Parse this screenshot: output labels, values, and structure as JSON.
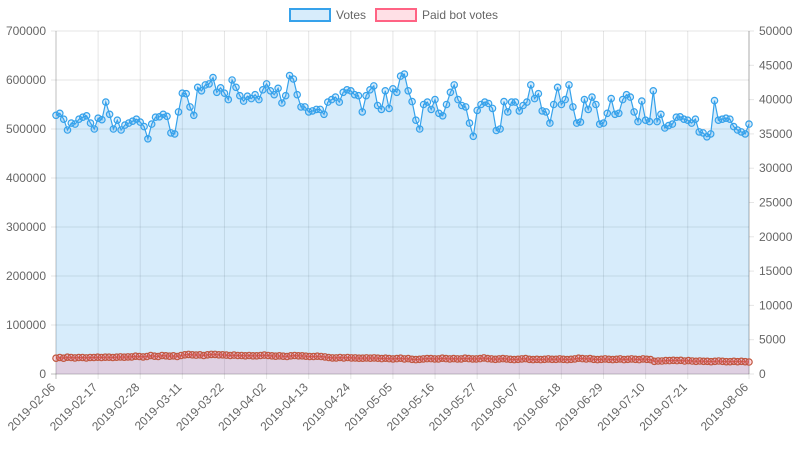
{
  "chart_data": {
    "type": "line",
    "title": "",
    "legend": {
      "position": "top",
      "items": [
        {
          "label": "Votes",
          "color": "#36a2eb",
          "fill": "rgba(54,162,235,0.2)"
        },
        {
          "label": "Paid bot votes",
          "color": "#ff6384",
          "fill": "rgba(255,99,132,0.2)"
        }
      ]
    },
    "x_tick_labels": [
      "2019-02-06",
      "2019-02-17",
      "2019-02-28",
      "2019-03-11",
      "2019-03-22",
      "2019-04-02",
      "2019-04-13",
      "2019-04-24",
      "2019-05-05",
      "2019-05-16",
      "2019-05-27",
      "2019-06-07",
      "2019-06-18",
      "2019-06-29",
      "2019-07-10",
      "2019-07-21",
      "2019-08-06"
    ],
    "y_left": {
      "min": 0,
      "max": 700000,
      "step": 100000,
      "ticks": [
        "0",
        "100000",
        "200000",
        "300000",
        "400000",
        "500000",
        "600000",
        "700000"
      ]
    },
    "y_right": {
      "min": 0,
      "max": 50000,
      "step": 5000,
      "ticks": [
        "0",
        "5000",
        "10000",
        "15000",
        "20000",
        "25000",
        "30000",
        "35000",
        "40000",
        "45000",
        "50000"
      ]
    },
    "grid": true,
    "x_start": "2019-02-06",
    "x_end": "2019-08-06",
    "series": [
      {
        "name": "Votes",
        "axis": "left",
        "values": [
          528000,
          532000,
          520000,
          498000,
          512000,
          510000,
          520000,
          524000,
          527000,
          512000,
          500000,
          522000,
          519000,
          555000,
          530000,
          500000,
          518000,
          498000,
          508000,
          512000,
          516000,
          520000,
          514000,
          505000,
          480000,
          510000,
          524000,
          525000,
          530000,
          526000,
          492000,
          490000,
          535000,
          573000,
          572000,
          545000,
          528000,
          585000,
          578000,
          590000,
          592000,
          605000,
          575000,
          584000,
          573000,
          560000,
          600000,
          585000,
          568000,
          557000,
          567000,
          562000,
          570000,
          560000,
          580000,
          592000,
          578000,
          570000,
          583000,
          553000,
          568000,
          609000,
          602000,
          570000,
          545000,
          545000,
          535000,
          537000,
          540000,
          540000,
          530000,
          555000,
          560000,
          565000,
          555000,
          575000,
          580000,
          578000,
          570000,
          568000,
          535000,
          568000,
          580000,
          588000,
          548000,
          540000,
          578000,
          542000,
          582000,
          575000,
          608000,
          612000,
          578000,
          556000,
          518000,
          500000,
          550000,
          555000,
          540000,
          560000,
          532000,
          527000,
          550000,
          575000,
          590000,
          560000,
          548000,
          545000,
          512000,
          485000,
          538000,
          550000,
          555000,
          552000,
          542000,
          497000,
          500000,
          556000,
          535000,
          555000,
          555000,
          537000,
          548000,
          555000,
          590000,
          562000,
          572000,
          537000,
          535000,
          512000,
          550000,
          585000,
          550000,
          560000,
          590000,
          545000,
          512000,
          514000,
          560000,
          540000,
          565000,
          550000,
          510000,
          512000,
          532000,
          562000,
          530000,
          532000,
          560000,
          570000,
          565000,
          535000,
          515000,
          557000,
          518000,
          515000,
          578000,
          515000,
          530000,
          502000,
          507000,
          510000,
          524000,
          525000,
          520000,
          518000,
          512000,
          520000,
          494000,
          492000,
          484000,
          490000,
          558000,
          518000,
          520000,
          522000,
          520000,
          505000,
          498000,
          494000,
          490000,
          510000
        ]
      },
      {
        "name": "Paid bot votes",
        "axis": "right",
        "values": [
          2300,
          2400,
          2300,
          2450,
          2400,
          2350,
          2400,
          2400,
          2350,
          2400,
          2400,
          2450,
          2400,
          2450,
          2450,
          2400,
          2450,
          2500,
          2450,
          2500,
          2500,
          2600,
          2550,
          2500,
          2550,
          2700,
          2600,
          2550,
          2700,
          2650,
          2600,
          2650,
          2550,
          2700,
          2800,
          2850,
          2800,
          2750,
          2800,
          2700,
          2800,
          2850,
          2850,
          2800,
          2800,
          2750,
          2700,
          2750,
          2700,
          2700,
          2650,
          2700,
          2650,
          2650,
          2700,
          2750,
          2700,
          2650,
          2600,
          2650,
          2600,
          2550,
          2650,
          2700,
          2650,
          2650,
          2600,
          2550,
          2550,
          2600,
          2550,
          2500,
          2400,
          2350,
          2350,
          2400,
          2350,
          2400,
          2350,
          2350,
          2300,
          2300,
          2350,
          2300,
          2350,
          2300,
          2250,
          2300,
          2250,
          2200,
          2250,
          2300,
          2200,
          2250,
          2150,
          2100,
          2150,
          2200,
          2250,
          2250,
          2200,
          2200,
          2300,
          2250,
          2200,
          2250,
          2200,
          2200,
          2300,
          2250,
          2200,
          2200,
          2250,
          2350,
          2250,
          2200,
          2150,
          2200,
          2250,
          2200,
          2150,
          2100,
          2150,
          2200,
          2250,
          2150,
          2100,
          2150,
          2100,
          2150,
          2200,
          2150,
          2150,
          2200,
          2150,
          2100,
          2150,
          2200,
          2300,
          2250,
          2200,
          2250,
          2150,
          2100,
          2150,
          2200,
          2150,
          2100,
          2150,
          2200,
          2100,
          2150,
          2200,
          2150,
          2100,
          2200,
          2150,
          2100,
          1850,
          1900,
          1900,
          1950,
          1950,
          2000,
          1950,
          2000,
          1900,
          1950,
          1900,
          1850,
          1900,
          1850,
          1850,
          1800,
          1850,
          1900,
          1850,
          1800,
          1800,
          1850,
          1800,
          1850,
          1800,
          1750
        ]
      }
    ]
  }
}
